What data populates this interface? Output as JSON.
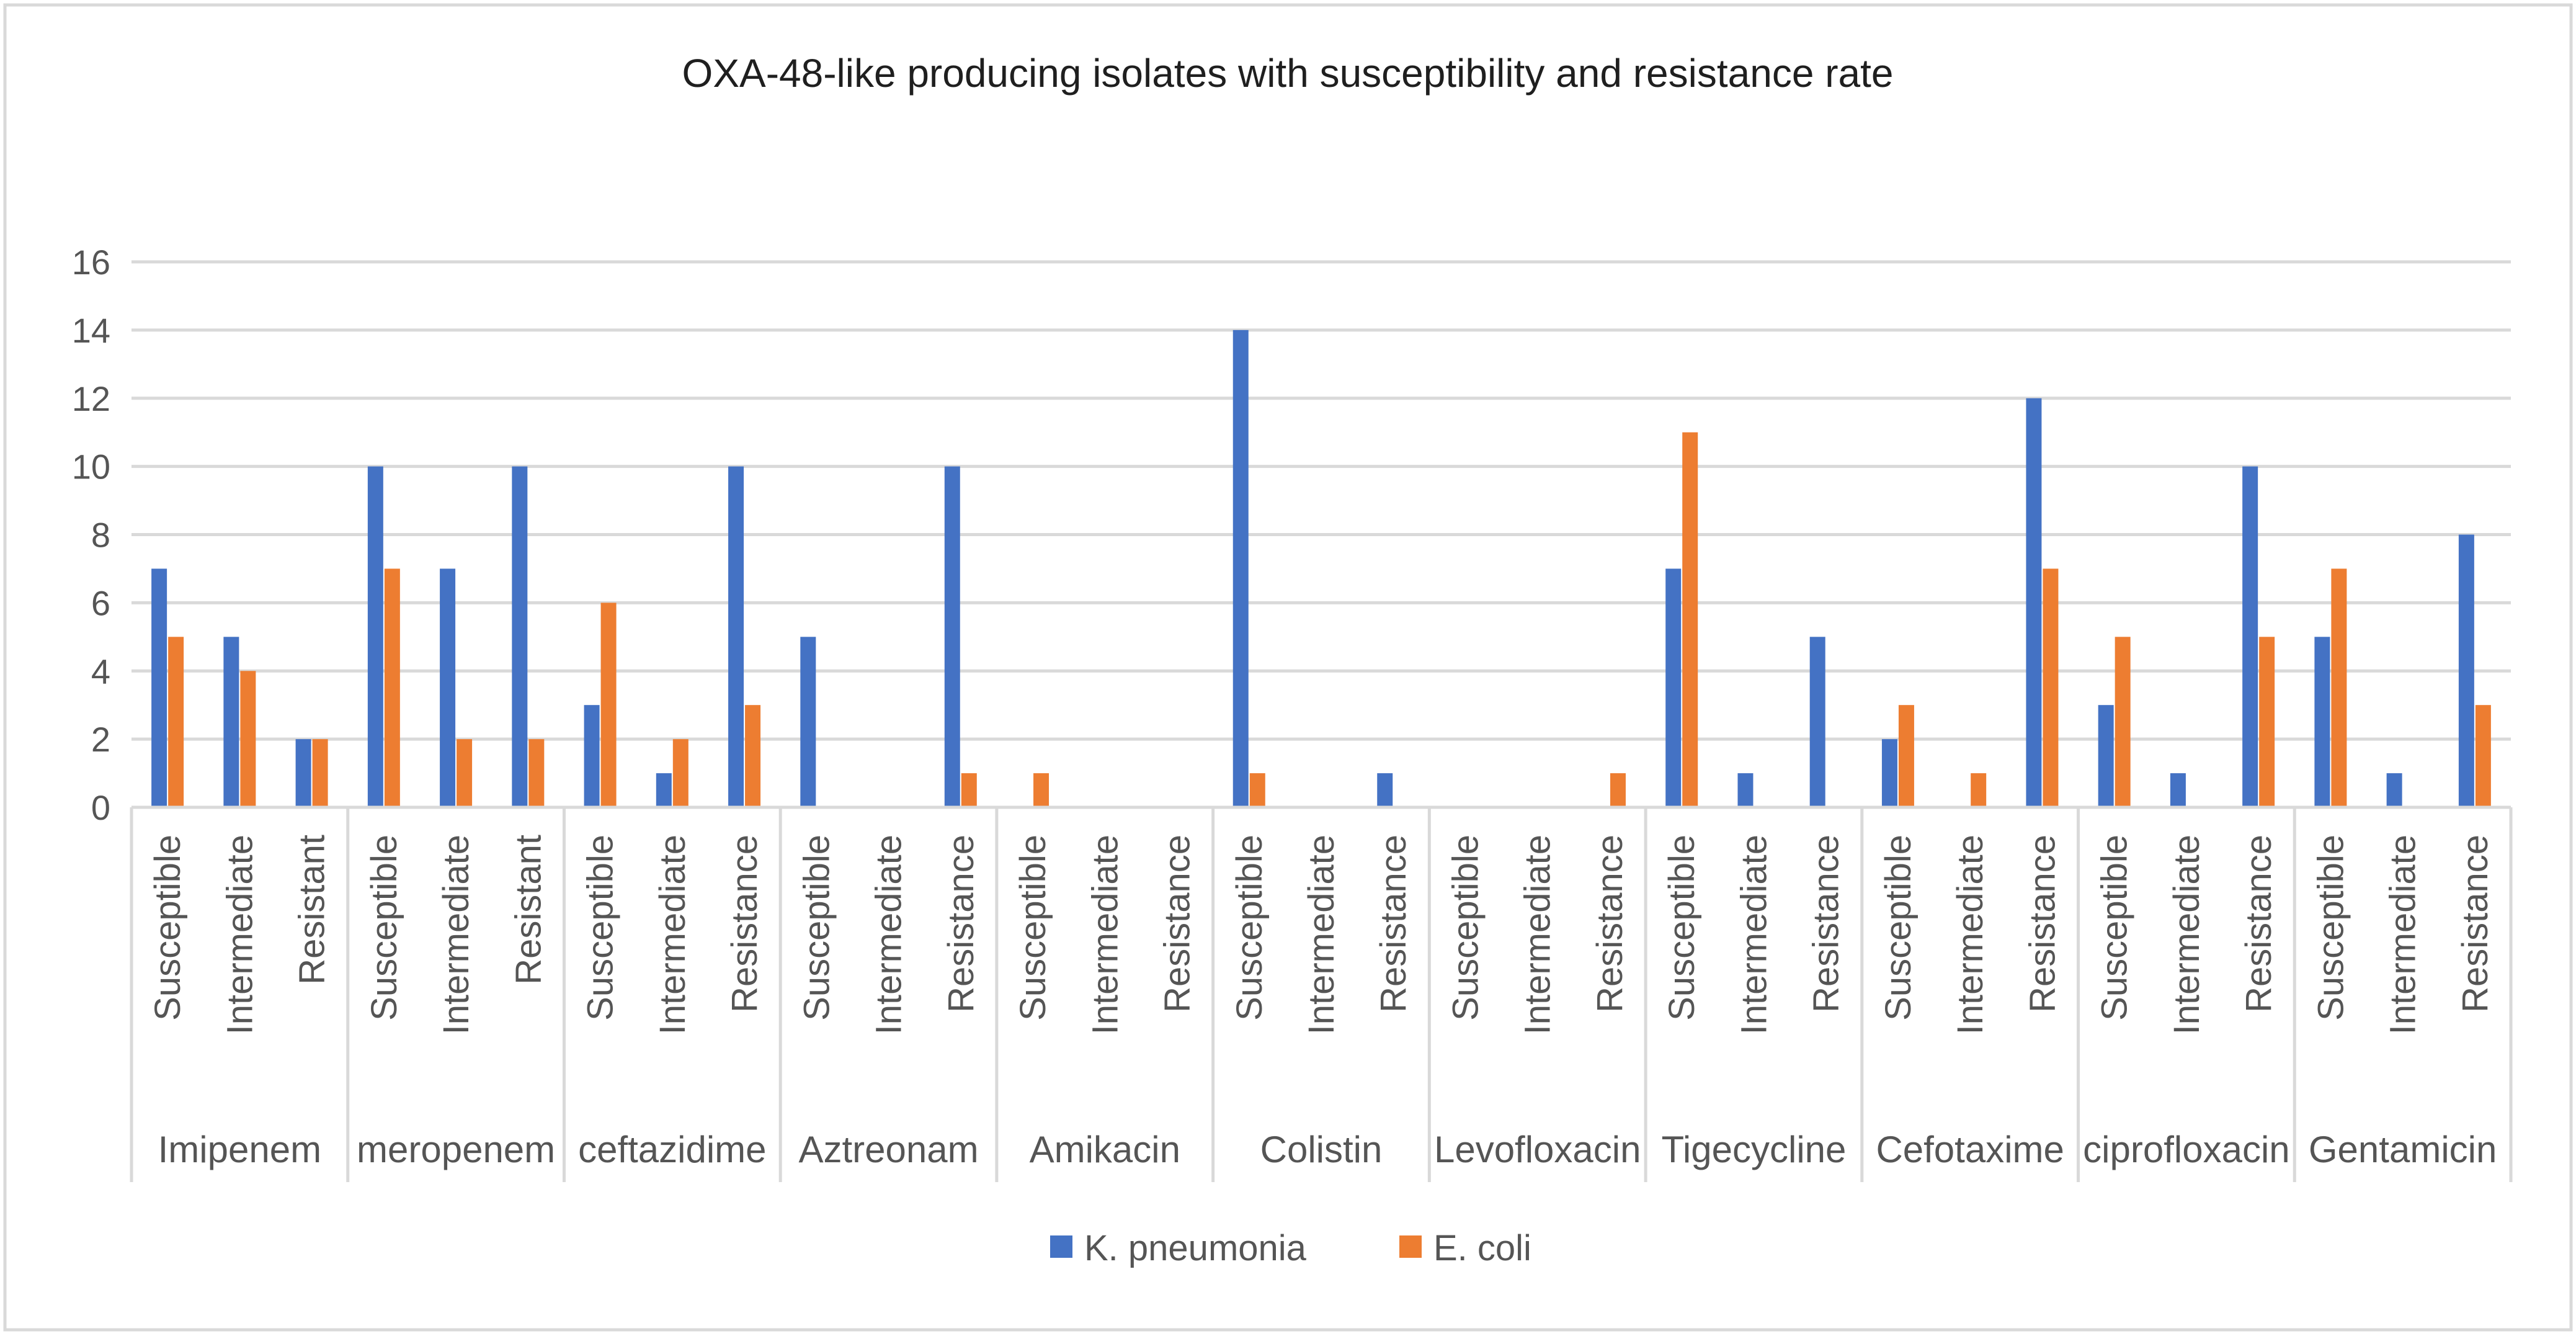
{
  "chart_data": {
    "type": "bar",
    "title": "OXA-48-like producing isolates with susceptibility and resistance rate",
    "xlabel": "",
    "ylabel": "",
    "ylim": [
      0,
      16
    ],
    "yticks": [
      0,
      2,
      4,
      6,
      8,
      10,
      12,
      14,
      16
    ],
    "grid": true,
    "legend_position": "bottom",
    "colors": {
      "K. pneumonia": "#4472C4",
      "E. coli": "#ED7D31"
    },
    "groups": [
      {
        "name": "Imipenem",
        "categories": [
          "Susceptible",
          "Intermediate",
          "Resistant"
        ]
      },
      {
        "name": "meropenem",
        "categories": [
          "Susceptible",
          "Intermediate",
          "Resistant"
        ]
      },
      {
        "name": "ceftazidime",
        "categories": [
          "Susceptible",
          "Intermediate",
          "Resistance"
        ]
      },
      {
        "name": "Aztreonam",
        "categories": [
          "Susceptible",
          "Intermediate",
          "Resistance"
        ]
      },
      {
        "name": "Amikacin",
        "categories": [
          "Susceptible",
          "Intermediate",
          "Resistance"
        ]
      },
      {
        "name": "Colistin",
        "categories": [
          "Susceptible",
          "Intermediate",
          "Resistance"
        ]
      },
      {
        "name": "Levofloxacin",
        "categories": [
          "Susceptible",
          "Intermediate",
          "Resistance"
        ]
      },
      {
        "name": "Tigecycline",
        "categories": [
          "Susceptible",
          "Intermediate",
          "Resistance"
        ]
      },
      {
        "name": "Cefotaxime",
        "categories": [
          "Susceptible",
          "Intermediate",
          "Resistance"
        ]
      },
      {
        "name": "ciprofloxacin",
        "categories": [
          "Susceptible",
          "Intermediate",
          "Resistance"
        ]
      },
      {
        "name": "Gentamicin",
        "categories": [
          "Susceptible",
          "Intermediate",
          "Resistance"
        ]
      }
    ],
    "series": [
      {
        "name": "K. pneumonia",
        "values": [
          7,
          5,
          2,
          10,
          7,
          10,
          3,
          1,
          10,
          5,
          0,
          10,
          0,
          0,
          0,
          14,
          0,
          1,
          0,
          0,
          0,
          7,
          1,
          5,
          2,
          0,
          12,
          3,
          1,
          10,
          5,
          1,
          8
        ]
      },
      {
        "name": "E. coli",
        "values": [
          5,
          4,
          2,
          7,
          2,
          2,
          6,
          2,
          3,
          0,
          0,
          1,
          1,
          0,
          0,
          1,
          0,
          0,
          0,
          0,
          1,
          11,
          0,
          0,
          3,
          1,
          7,
          5,
          0,
          5,
          7,
          0,
          3
        ]
      }
    ]
  }
}
